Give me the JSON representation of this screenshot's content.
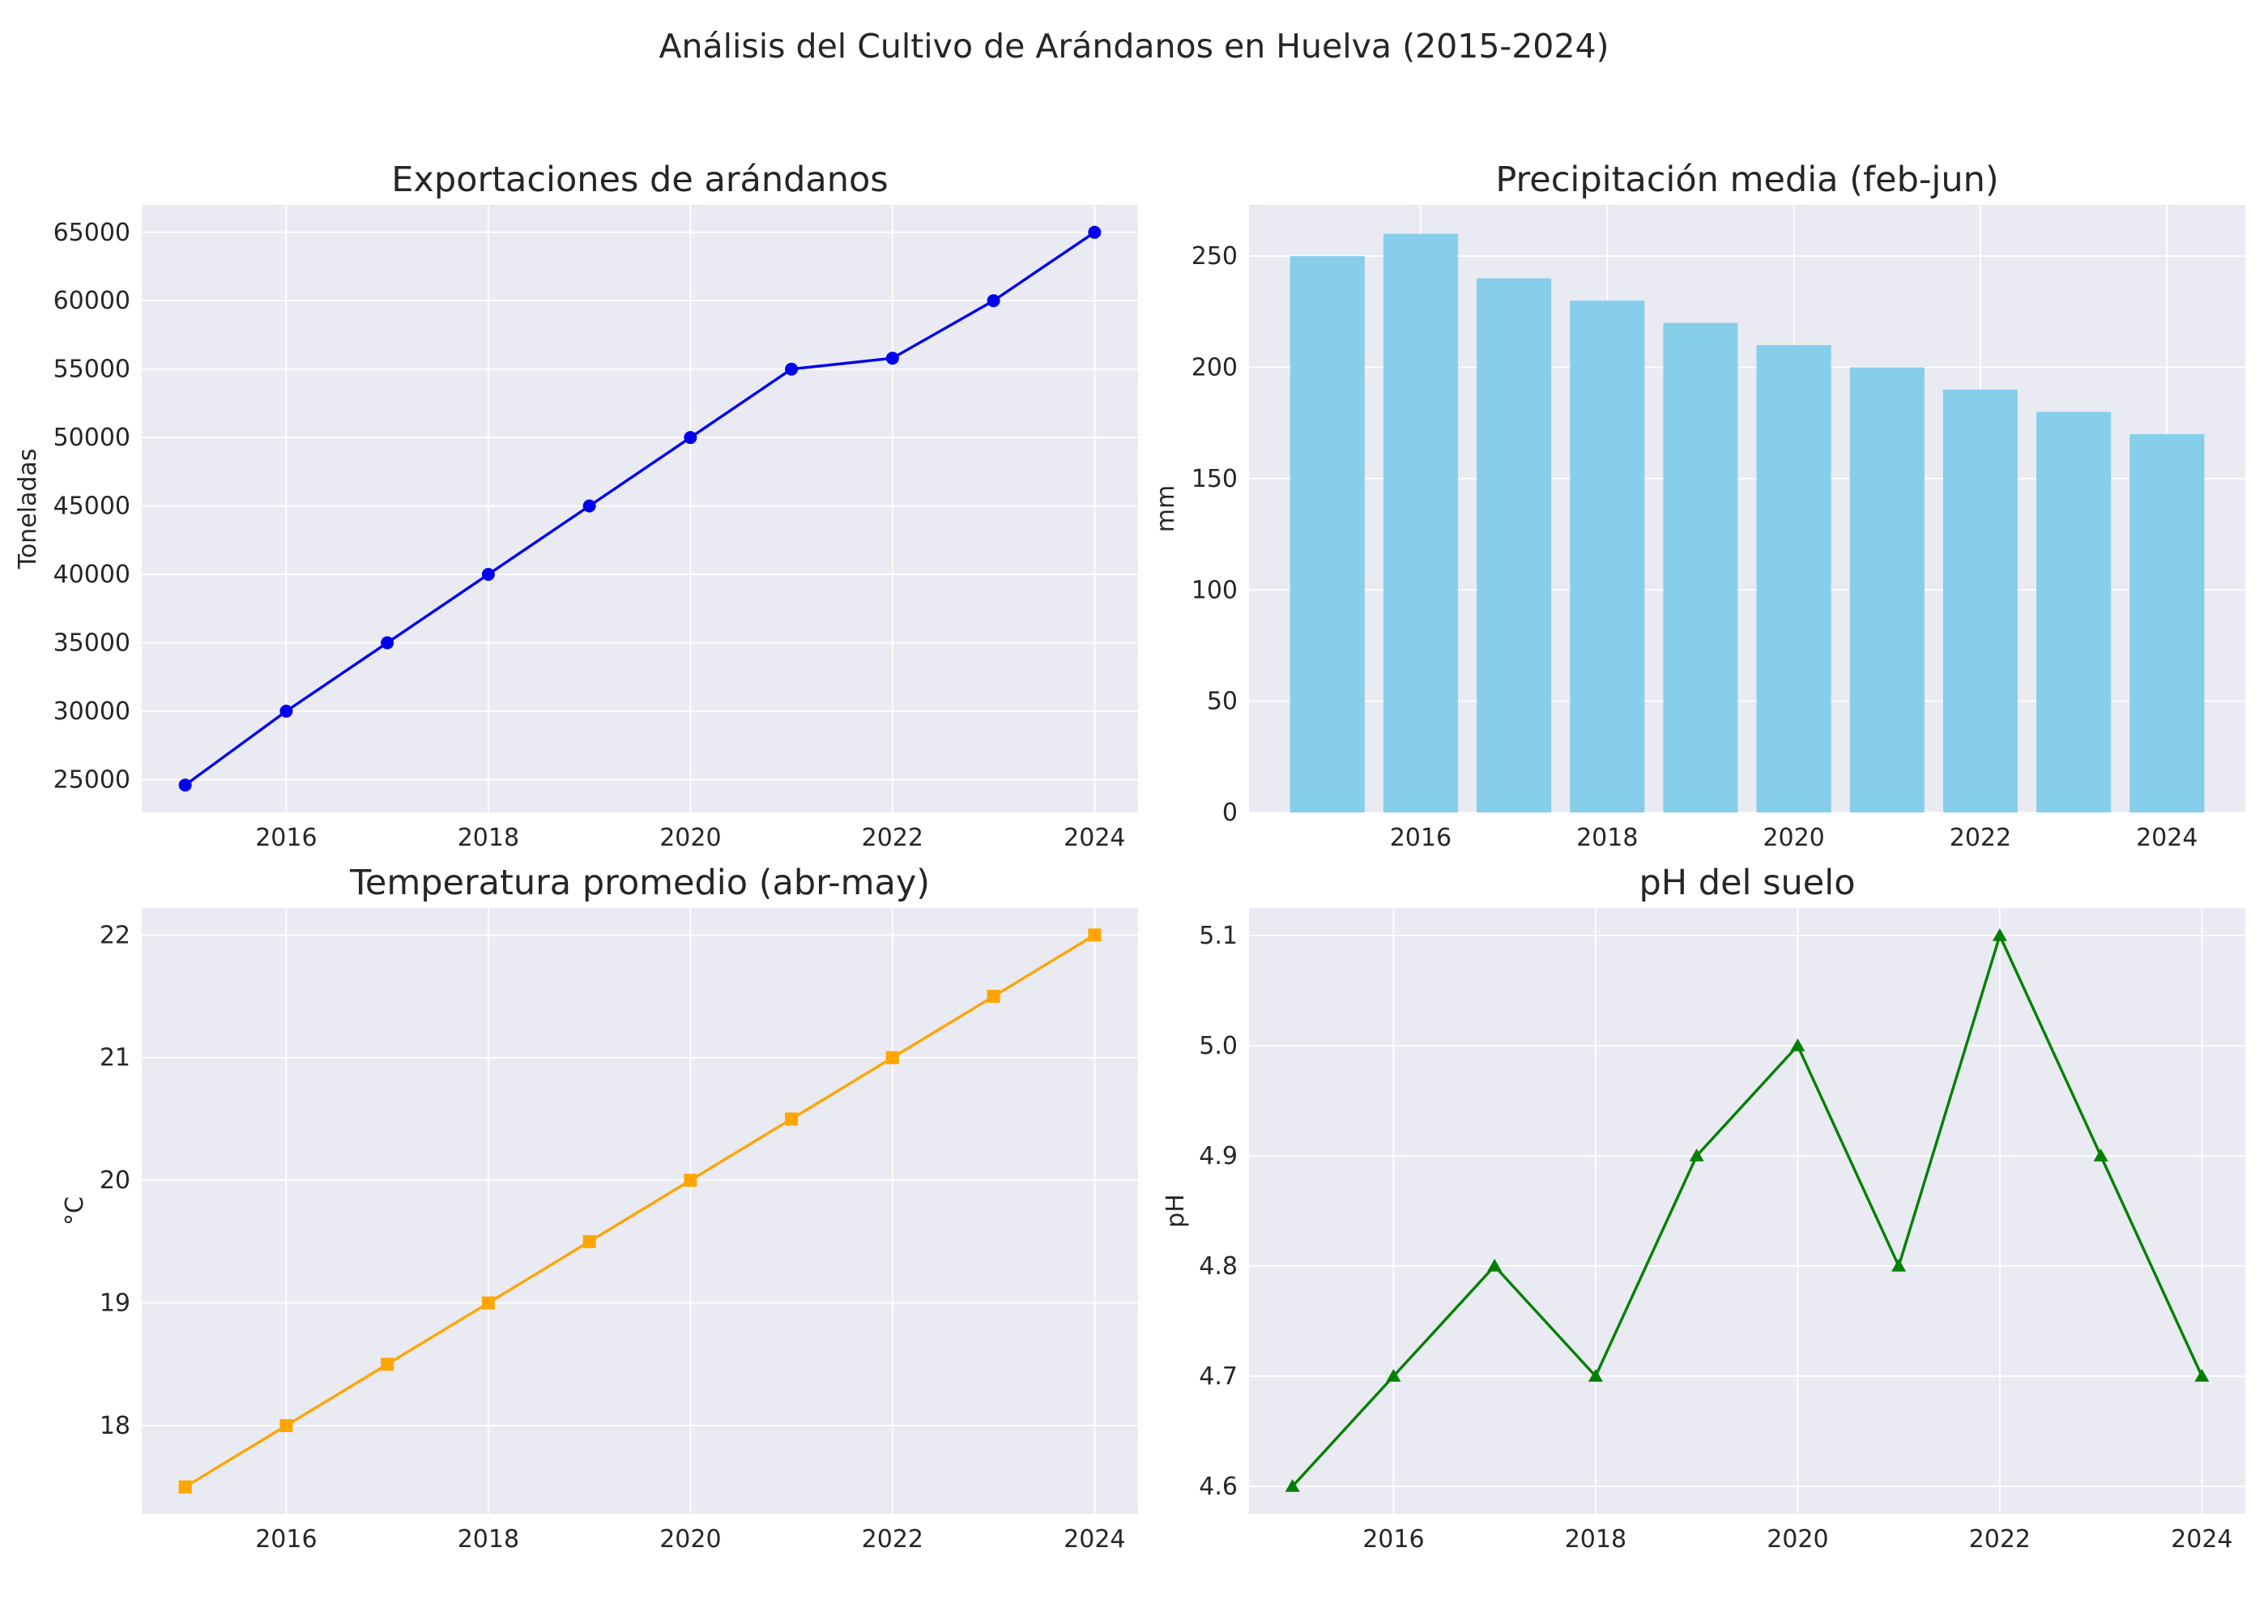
{
  "figure": {
    "title": "Análisis del Cultivo de Arándanos en Huelva (2015-2024)"
  },
  "chart_data": [
    {
      "id": "exports",
      "type": "line",
      "title": "Exportaciones de arándanos",
      "xlabel": "",
      "ylabel": "Toneladas",
      "x": [
        2015,
        2016,
        2017,
        2018,
        2019,
        2020,
        2021,
        2022,
        2023,
        2024
      ],
      "values": [
        24600,
        30000,
        35000,
        40000,
        45000,
        50000,
        55000,
        55800,
        60000,
        65000
      ],
      "xlim": [
        2014.57,
        2024.43
      ],
      "ylim": [
        22600,
        67000
      ],
      "xticks": [
        "2016",
        "2018",
        "2020",
        "2022",
        "2024"
      ],
      "yticks": [
        "25000",
        "30000",
        "35000",
        "40000",
        "45000",
        "50000",
        "55000",
        "60000",
        "65000"
      ],
      "color": "#0000ee",
      "marker": "circle",
      "grid": true
    },
    {
      "id": "precipitation",
      "type": "bar",
      "title": "Precipitación media (feb-jun)",
      "xlabel": "",
      "ylabel": "mm",
      "x": [
        2015,
        2016,
        2017,
        2018,
        2019,
        2020,
        2021,
        2022,
        2023,
        2024
      ],
      "values": [
        250,
        260,
        240,
        230,
        220,
        210,
        200,
        190,
        180,
        170
      ],
      "xlim": [
        2014.16,
        2024.84
      ],
      "ylim": [
        0,
        273
      ],
      "xticks": [
        "2016",
        "2018",
        "2020",
        "2022",
        "2024"
      ],
      "yticks": [
        "0",
        "50",
        "100",
        "150",
        "200",
        "250"
      ],
      "color": "#87CEEB",
      "grid": true
    },
    {
      "id": "temperature",
      "type": "line",
      "title": "Temperatura promedio (abr-may)",
      "xlabel": "",
      "ylabel": "°C",
      "x": [
        2015,
        2016,
        2017,
        2018,
        2019,
        2020,
        2021,
        2022,
        2023,
        2024
      ],
      "values": [
        17.5,
        18.0,
        18.5,
        19.0,
        19.5,
        20.0,
        20.5,
        21.0,
        21.5,
        22.0
      ],
      "xlim": [
        2014.57,
        2024.43
      ],
      "ylim": [
        17.28,
        22.22
      ],
      "xticks": [
        "2016",
        "2018",
        "2020",
        "2022",
        "2024"
      ],
      "yticks": [
        "18",
        "19",
        "20",
        "21",
        "22"
      ],
      "color": "#FFA500",
      "marker": "square",
      "grid": true
    },
    {
      "id": "ph",
      "type": "line",
      "title": "pH del suelo",
      "xlabel": "",
      "ylabel": "pH",
      "x": [
        2015,
        2016,
        2017,
        2018,
        2019,
        2020,
        2021,
        2022,
        2023,
        2024
      ],
      "values": [
        4.6,
        4.7,
        4.8,
        4.7,
        4.9,
        5.0,
        4.8,
        5.1,
        4.9,
        4.7
      ],
      "xlim": [
        2014.57,
        2024.43
      ],
      "ylim": [
        4.575,
        5.125
      ],
      "xticks": [
        "2016",
        "2018",
        "2020",
        "2022",
        "2024"
      ],
      "yticks": [
        "4.6",
        "4.7",
        "4.8",
        "4.9",
        "5.0",
        "5.1"
      ],
      "color": "#008000",
      "marker": "triangle",
      "grid": true
    }
  ]
}
